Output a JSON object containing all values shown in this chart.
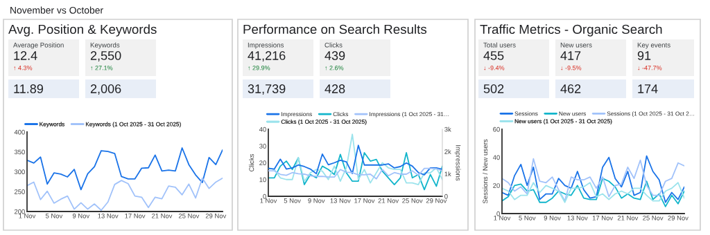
{
  "chart_data": [
    {
      "type": "other",
      "title": "November vs October"
    },
    {
      "type": "other",
      "title": "Avg. Position & Keywords",
      "annotations": [
        "Average Position",
        "12.4",
        "↑ 4.3%",
        "11.89",
        "Keywords",
        "2,550",
        "↑ 27.1%",
        "2,006"
      ],
      "colors": [
        "#d93025",
        "#188038"
      ]
    },
    {
      "type": "line",
      "categories": [
        "1 Nov",
        null,
        null,
        null,
        "5 Nov",
        null,
        null,
        null,
        "9 Nov",
        null,
        null,
        null,
        "13 Nov",
        null,
        null,
        null,
        "17 Nov",
        null,
        null,
        null,
        "21 Nov",
        null,
        null,
        null,
        "25 Nov",
        null,
        null,
        null,
        "29 Nov",
        null
      ],
      "series": [
        {
          "name": "Keywords",
          "color": "#1a73e8",
          "values": [
            329,
            322,
            337,
            269,
            297,
            294,
            287,
            306,
            255,
            295,
            313,
            353,
            351,
            346,
            288,
            282,
            282,
            309,
            310,
            342,
            302,
            304,
            302,
            360,
            318,
            292,
            273,
            336,
            318,
            355
          ]
        },
        {
          "name": "Keywords (1 Oct 2025 - 31 Oct 2025)",
          "color": "#a1c2fa",
          "values": [
            265,
            274,
            230,
            251,
            221,
            231,
            239,
            206,
            222,
            206,
            219,
            203,
            224,
            268,
            278,
            270,
            239,
            236,
            210,
            236,
            232,
            264,
            261,
            242,
            269,
            234,
            284,
            258,
            274,
            284
          ]
        }
      ],
      "ylim": [
        200,
        400
      ],
      "yticks": [
        200,
        250,
        300,
        350,
        400
      ],
      "legend": "top"
    },
    {
      "type": "other",
      "title": "Performance on Search Results",
      "annotations": [
        "Impressions",
        "41,216",
        "↑ 29.9%",
        "31,739",
        "Clicks",
        "439",
        "↑ 2.6%",
        "428"
      ],
      "colors": [
        "#188038",
        "#188038"
      ]
    },
    {
      "type": "line",
      "categories": [
        "1 Nov",
        null,
        null,
        null,
        "5 Nov",
        null,
        null,
        null,
        "9 Nov",
        null,
        null,
        null,
        "13 Nov",
        null,
        null,
        null,
        "17 Nov",
        null,
        null,
        null,
        "21 Nov",
        null,
        null,
        null,
        "25 Nov",
        null,
        null,
        null,
        "29 Nov",
        null
      ],
      "series": [
        {
          "name": "Impressions",
          "color": "#1a73e8",
          "axis": "y2",
          "values": [
            1250,
            1220,
            1660,
            1220,
            1270,
            1400,
            1330,
            1220,
            1010,
            1890,
            1410,
            1500,
            1610,
            1540,
            1020,
            2280,
            1400,
            1400,
            1400,
            1400,
            1450,
            1270,
            1330,
            1490,
            1350,
            1060,
            960,
            1270,
            1270,
            1210
          ]
        },
        {
          "name": "Clicks",
          "color": "#12b5cb",
          "values": [
            11,
            11,
            18,
            21,
            16,
            23,
            7,
            13,
            11,
            18,
            16,
            13,
            25,
            14,
            9,
            9,
            26,
            21,
            22,
            15,
            11,
            7,
            11,
            26,
            11,
            13,
            4,
            13,
            6,
            18
          ]
        },
        {
          "name": "Impressions (1 Oct 2025 - 31…",
          "color": "#a1c2fa",
          "axis": "y2",
          "values": [
            1140,
            1140,
            980,
            940,
            1060,
            1010,
            990,
            920,
            890,
            890,
            860,
            860,
            1200,
            1080,
            1060,
            960,
            960,
            990,
            780,
            1200,
            920,
            1060,
            990,
            990,
            1140,
            940,
            1250,
            1250,
            1230,
            1140
          ]
        },
        {
          "name": "Clicks (1 Oct 2025 - 31 Oct 2025)",
          "color": "#9be3ec",
          "values": [
            17,
            16,
            11,
            10,
            10,
            23,
            9,
            14,
            16,
            15,
            10,
            18,
            9,
            17,
            37,
            10,
            16,
            8,
            14,
            20,
            17,
            16,
            16,
            8,
            8,
            7,
            14,
            14,
            17,
            10
          ]
        }
      ],
      "ylim": [
        0,
        40
      ],
      "yticks": [
        0,
        10,
        20,
        30,
        40
      ],
      "y2lim": [
        0,
        3000
      ],
      "y2ticks": [
        0,
        {
          "value": 1000,
          "label": "1k"
        },
        {
          "value": 2000,
          "label": "2k"
        },
        {
          "value": 3000,
          "label": "3k"
        }
      ],
      "ylabel": "Clicks",
      "y2label": "Impressions",
      "legend": "top"
    },
    {
      "type": "other",
      "title": "Traffic Metrics - Organic Search",
      "annotations": [
        "Total users",
        "455",
        "↓ -9.4%",
        "502",
        "New users",
        "417",
        "↓ -9.5%",
        "462",
        "Key events",
        "91",
        "↓ -47.7%",
        "174"
      ],
      "colors": [
        "#d93025",
        "#d93025",
        "#d93025"
      ]
    },
    {
      "type": "line",
      "categories": [
        "1 Nov",
        null,
        null,
        null,
        "5 Nov",
        null,
        null,
        null,
        "9 Nov",
        null,
        null,
        null,
        "13 Nov",
        null,
        null,
        null,
        "17 Nov",
        null,
        null,
        null,
        "21 Nov",
        null,
        null,
        null,
        "25 Nov",
        null,
        null,
        null,
        "29 Nov",
        null
      ],
      "series": [
        {
          "name": "Sessions",
          "color": "#1a73e8",
          "values": [
            15,
            13,
            27,
            35,
            20,
            33,
            10,
            14,
            14,
            25,
            20,
            18,
            30,
            17,
            11,
            12,
            33,
            40,
            25,
            19,
            30,
            13,
            15,
            41,
            30,
            24,
            8,
            15,
            10,
            19
          ]
        },
        {
          "name": "New users",
          "color": "#12b5cb",
          "values": [
            9,
            12,
            20,
            21,
            16,
            17,
            8,
            8,
            11,
            16,
            14,
            13,
            20,
            11,
            10,
            10,
            25,
            23,
            19,
            11,
            14,
            11,
            10,
            23,
            10,
            14,
            5,
            13,
            7,
            16
          ]
        },
        {
          "name": "Sessions (1 Oct 2025 - 31 Oct 2…",
          "color": "#a1c2fa",
          "values": [
            25,
            22,
            16,
            19,
            14,
            39,
            23,
            22,
            26,
            17,
            9,
            26,
            24,
            24,
            26,
            18,
            26,
            12,
            20,
            21,
            33,
            25,
            38,
            20,
            13,
            13,
            23,
            25,
            36,
            34
          ]
        },
        {
          "name": "New users (1 Oct 2025 - 31 Oct 2025)",
          "color": "#9be3ec",
          "values": [
            18,
            16,
            10,
            13,
            13,
            22,
            15,
            20,
            18,
            16,
            8,
            18,
            18,
            19,
            22,
            12,
            14,
            10,
            14,
            16,
            14,
            18,
            18,
            13,
            9,
            9,
            16,
            18,
            22,
            11
          ]
        }
      ],
      "ylim": [
        0,
        60
      ],
      "yticks": [
        0,
        20,
        40,
        60
      ],
      "ylabel": "Sessions / New users",
      "legend": "top"
    }
  ]
}
